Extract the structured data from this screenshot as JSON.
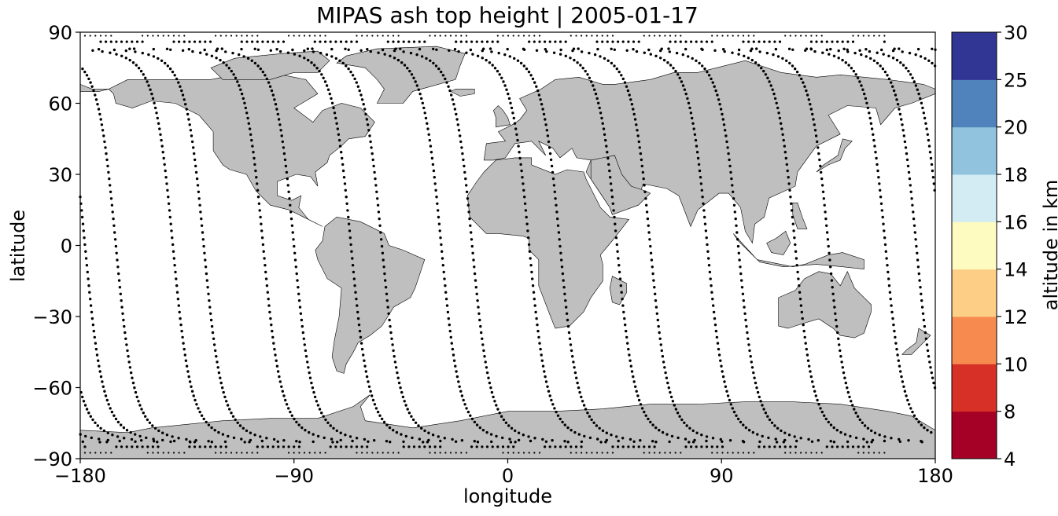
{
  "title": "MIPAS ash top height | 2005-01-17",
  "axes": {
    "xlabel": "longitude",
    "ylabel": "latitude",
    "x_ticks": [
      "−180",
      "−90",
      "0",
      "90",
      "180"
    ],
    "x_tick_values": [
      -180,
      -90,
      0,
      90,
      180
    ],
    "y_ticks": [
      "90",
      "60",
      "30",
      "0",
      "−30",
      "−60",
      "−90"
    ],
    "y_tick_values": [
      90,
      60,
      30,
      0,
      -30,
      -60,
      -90
    ],
    "xlim": [
      -180,
      180
    ],
    "ylim": [
      -90,
      90
    ]
  },
  "colorbar": {
    "label": "altitude in km",
    "ticks": [
      "4",
      "8",
      "10",
      "12",
      "14",
      "16",
      "18",
      "20",
      "25",
      "30"
    ],
    "colors": [
      "#a50026",
      "#d73027",
      "#f46d43",
      "#fdae61",
      "#fee090",
      "#ffffbf",
      "#e0f3f8",
      "#abd9e9",
      "#74add1",
      "#4575b4",
      "#313695"
    ],
    "band_colors": [
      "#a50026",
      "#d73027",
      "#f68a4f",
      "#fdce85",
      "#fefbc0",
      "#d3ebf3",
      "#91c3de",
      "#5083bb",
      "#313695"
    ]
  },
  "map": {
    "land_color": "#bfbfbf",
    "ocean_color": "#ffffff",
    "track_color": "#000000"
  },
  "chart_data": {
    "type": "scatter",
    "description_layer": "satellite ground tracks (MIPAS measurement locations)",
    "tracks_ascending_equator_lon": [
      -178,
      -141,
      -103,
      -66,
      -28,
      9,
      46,
      84,
      121,
      159
    ],
    "tracks_descending_equator_lon": [
      -165,
      -128,
      -90,
      -53,
      -15,
      22,
      60,
      97,
      135,
      172
    ],
    "xlim": [
      -180,
      180
    ],
    "ylim": [
      -90,
      90
    ]
  }
}
